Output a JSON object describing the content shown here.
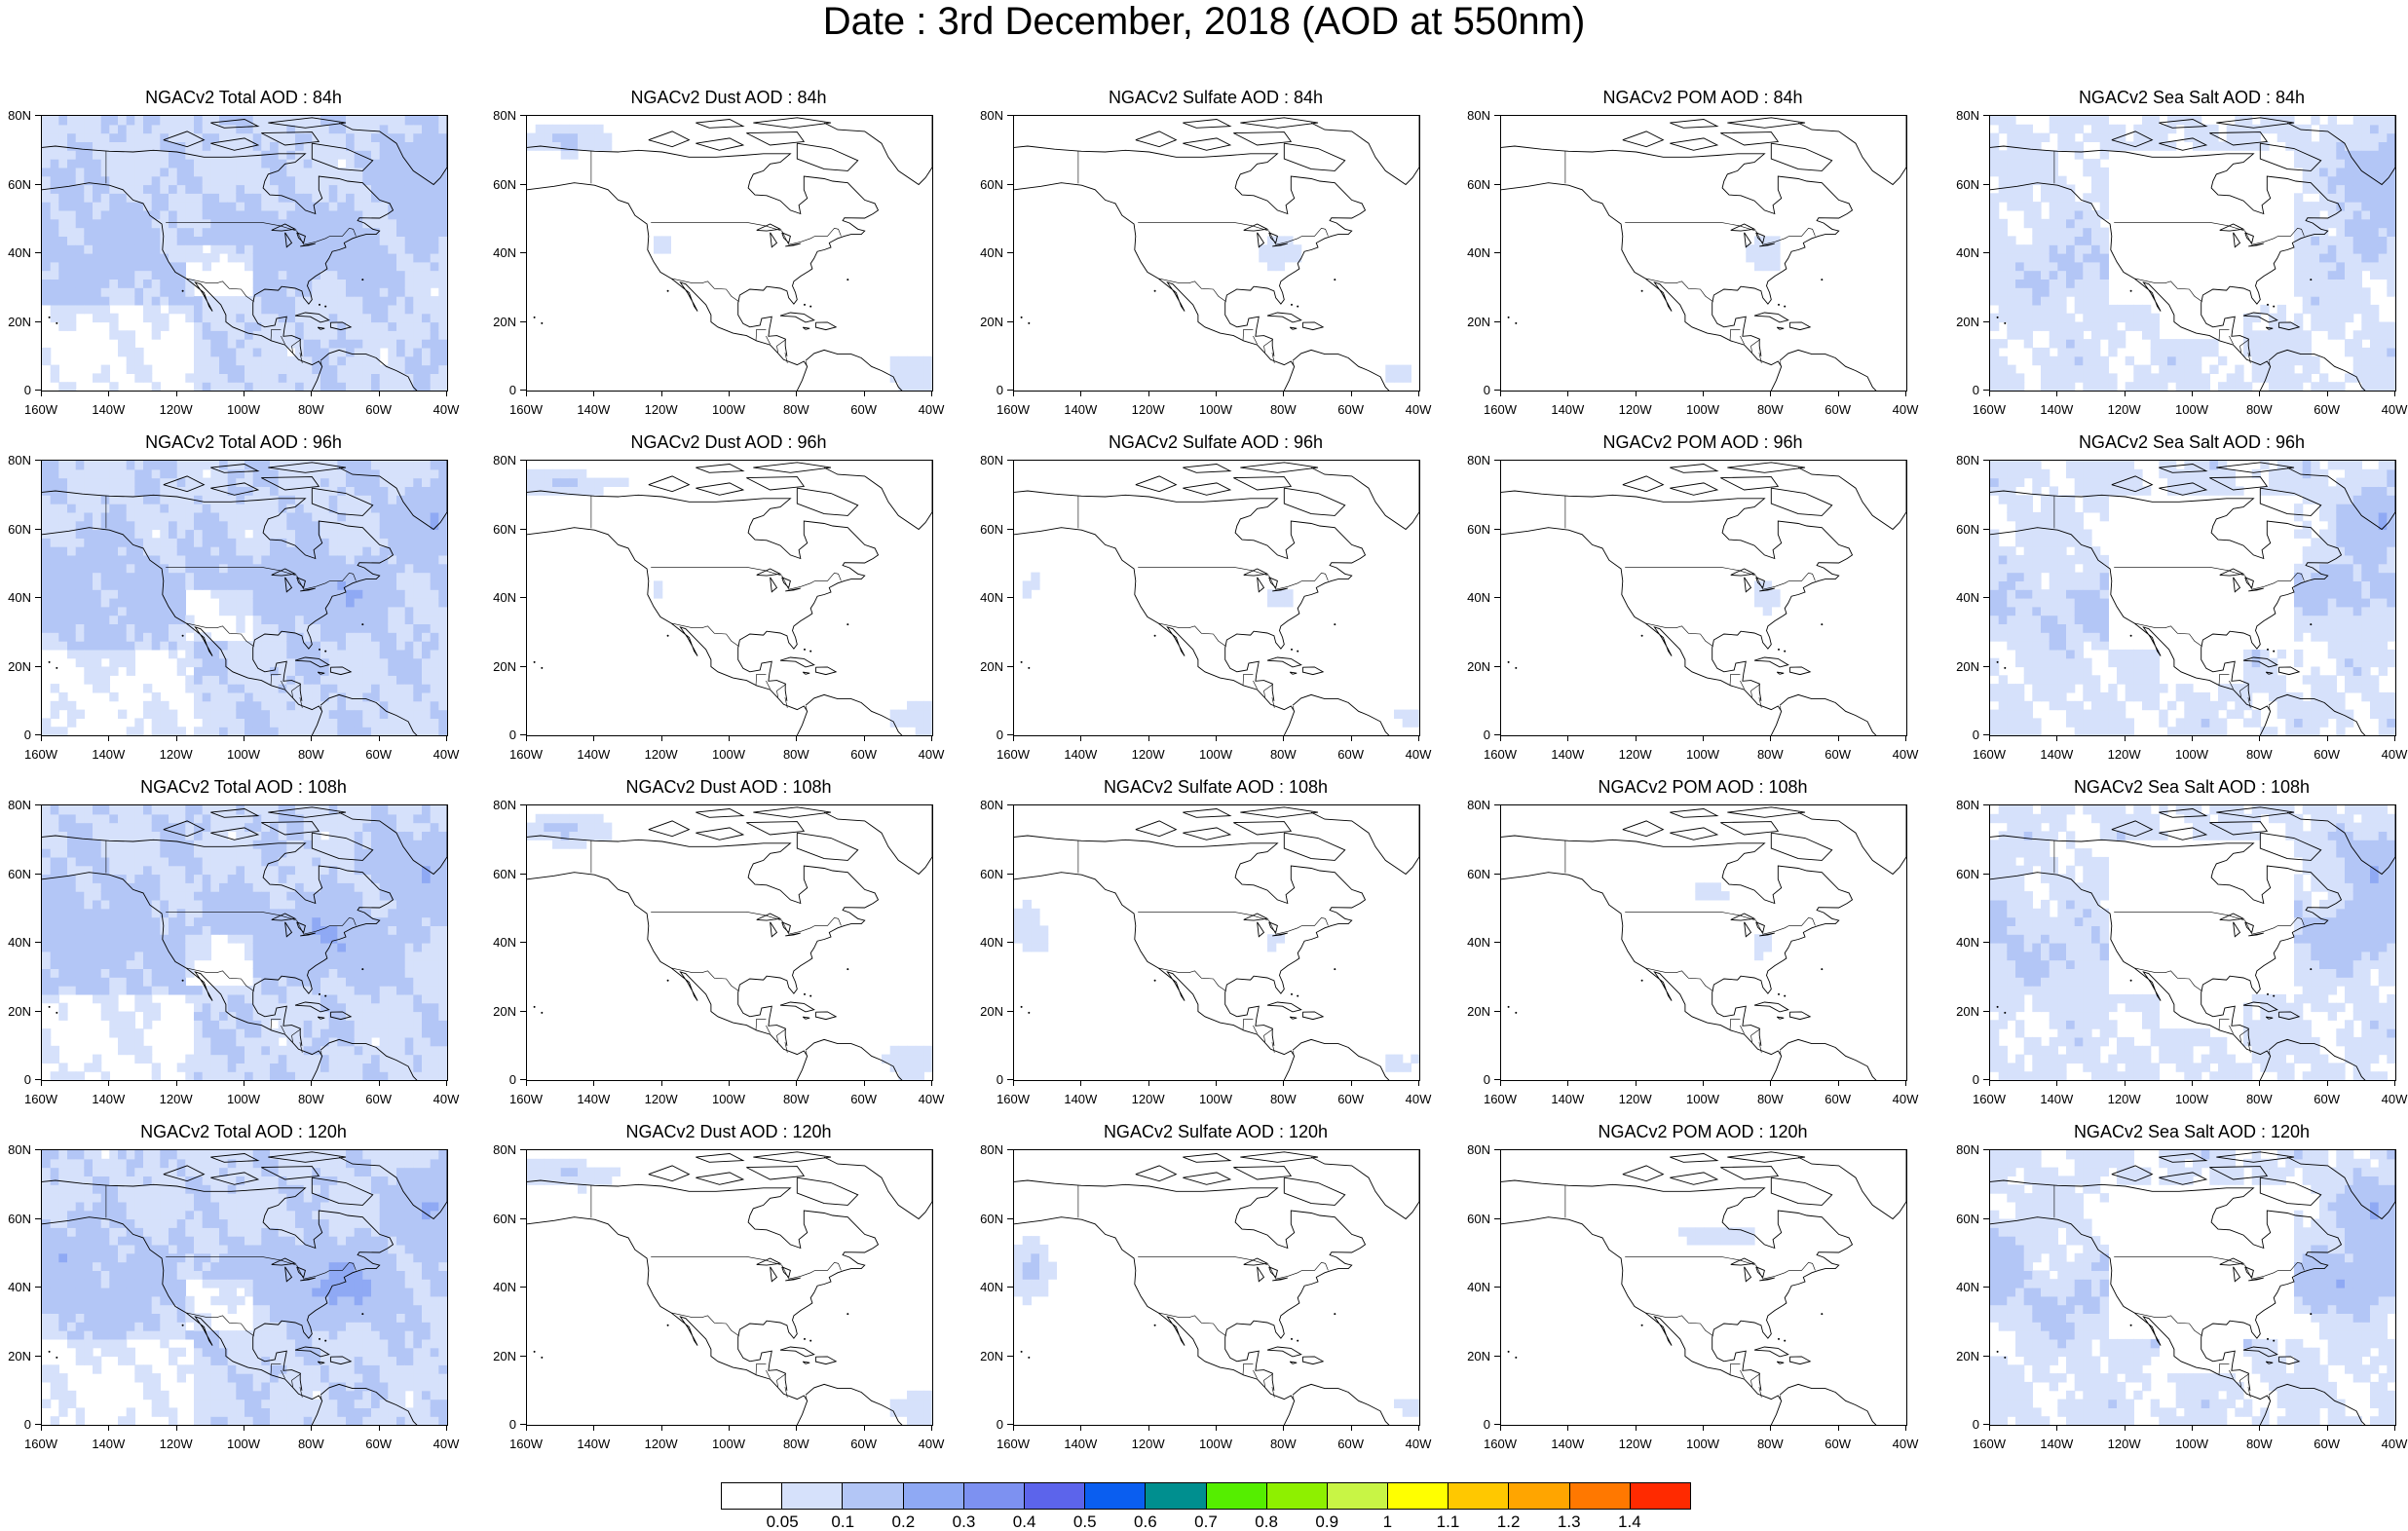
{
  "title": "Date : 3rd December, 2018 (AOD at 550nm)",
  "lat_labels": [
    "80N",
    "60N",
    "40N",
    "20N",
    "0"
  ],
  "lon_labels": [
    "160W",
    "140W",
    "120W",
    "100W",
    "80W",
    "60W",
    "40W"
  ],
  "panels": [
    {
      "title": "NGACv2 Total AOD : 84h",
      "species": "total",
      "hour": 84
    },
    {
      "title": "NGACv2 Dust AOD : 84h",
      "species": "dust",
      "hour": 84
    },
    {
      "title": "NGACv2 Sulfate AOD : 84h",
      "species": "sulfate",
      "hour": 84
    },
    {
      "title": "NGACv2 POM AOD : 84h",
      "species": "pom",
      "hour": 84
    },
    {
      "title": "NGACv2 Sea Salt AOD : 84h",
      "species": "seasalt",
      "hour": 84
    },
    {
      "title": "NGACv2 Total AOD : 96h",
      "species": "total",
      "hour": 96
    },
    {
      "title": "NGACv2 Dust AOD : 96h",
      "species": "dust",
      "hour": 96
    },
    {
      "title": "NGACv2 Sulfate AOD : 96h",
      "species": "sulfate",
      "hour": 96
    },
    {
      "title": "NGACv2 POM AOD : 96h",
      "species": "pom",
      "hour": 96
    },
    {
      "title": "NGACv2 Sea Salt AOD : 96h",
      "species": "seasalt",
      "hour": 96
    },
    {
      "title": "NGACv2 Total AOD : 108h",
      "species": "total",
      "hour": 108
    },
    {
      "title": "NGACv2 Dust AOD : 108h",
      "species": "dust",
      "hour": 108
    },
    {
      "title": "NGACv2 Sulfate AOD : 108h",
      "species": "sulfate",
      "hour": 108
    },
    {
      "title": "NGACv2 POM AOD : 108h",
      "species": "pom",
      "hour": 108
    },
    {
      "title": "NGACv2 Sea Salt AOD : 108h",
      "species": "seasalt",
      "hour": 108
    },
    {
      "title": "NGACv2 Total AOD : 120h",
      "species": "total",
      "hour": 120
    },
    {
      "title": "NGACv2 Dust AOD : 120h",
      "species": "dust",
      "hour": 120
    },
    {
      "title": "NGACv2 Sulfate AOD : 120h",
      "species": "sulfate",
      "hour": 120
    },
    {
      "title": "NGACv2 POM AOD : 120h",
      "species": "pom",
      "hour": 120
    },
    {
      "title": "NGACv2 Sea Salt  AOD : 120h",
      "species": "seasalt",
      "hour": 120
    }
  ],
  "colorbar": {
    "colors": [
      "#ffffff",
      "#d6e1fb",
      "#b3c6f6",
      "#8fa9f4",
      "#7d91f1",
      "#5c64eb",
      "#0a5ef0",
      "#008f8f",
      "#55ee00",
      "#8ef000",
      "#c8f545",
      "#ffff00",
      "#ffc800",
      "#ffa500",
      "#ff7800",
      "#ff2a00"
    ],
    "labels": [
      "0.05",
      "0.1",
      "0.2",
      "0.3",
      "0.4",
      "0.5",
      "0.6",
      "0.7",
      "0.8",
      "0.9",
      "1",
      "1.1",
      "1.2",
      "1.3",
      "1.4"
    ]
  }
}
